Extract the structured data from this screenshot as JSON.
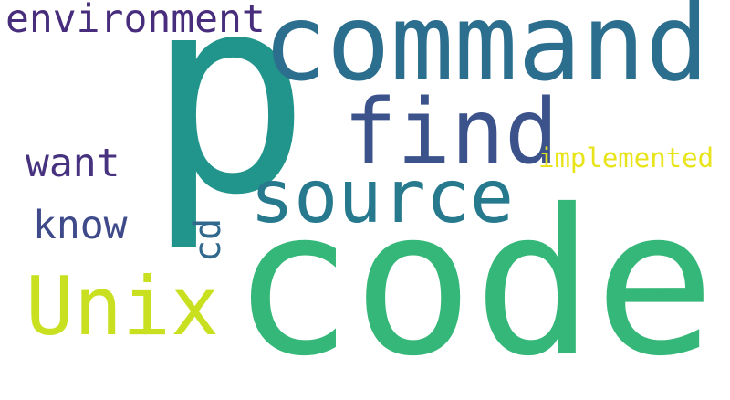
{
  "words": [
    {
      "id": "p",
      "text": "p",
      "color": "#21958b"
    },
    {
      "id": "command",
      "text": "command",
      "color": "#2c6e8d"
    },
    {
      "id": "code",
      "text": "code",
      "color": "#35b779"
    },
    {
      "id": "find",
      "text": "find",
      "color": "#3b528b"
    },
    {
      "id": "source",
      "text": "source",
      "color": "#27798e"
    },
    {
      "id": "unix",
      "text": "Unix",
      "color": "#c8e020"
    },
    {
      "id": "environment",
      "text": "environment",
      "color": "#472d7b"
    },
    {
      "id": "want",
      "text": "want",
      "color": "#46327e"
    },
    {
      "id": "know",
      "text": "know",
      "color": "#3e4a89"
    },
    {
      "id": "implemented",
      "text": "implemented",
      "color": "#e8e419"
    },
    {
      "id": "cd",
      "text": "cd",
      "color": "#31688e"
    }
  ]
}
